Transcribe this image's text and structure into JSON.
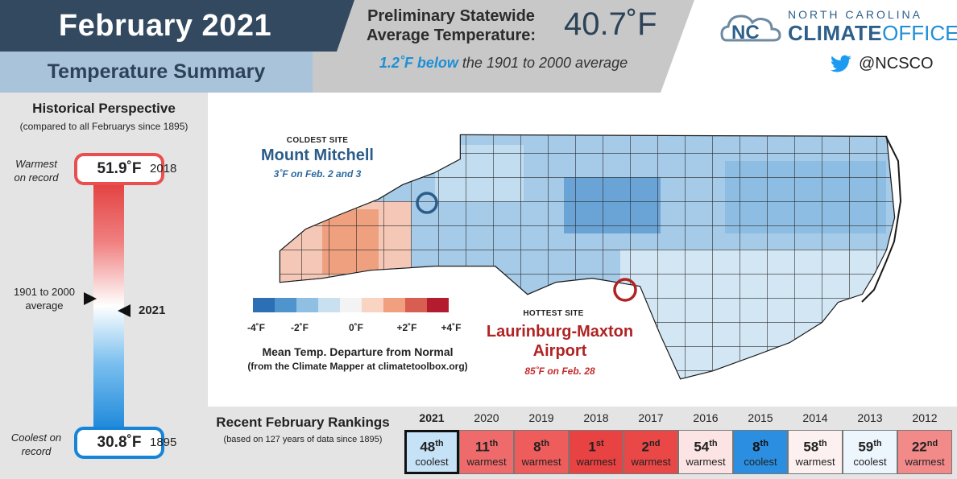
{
  "header": {
    "title": "February 2021",
    "subtitle": "Temperature Summary",
    "prelim_line1": "Preliminary Statewide",
    "prelim_line2": "Average Temperature:",
    "statewide_temp": "40.7˚F",
    "below_amount": "1.2˚F below",
    "below_rest": "the 1901 to 2000 average"
  },
  "logo": {
    "line1": "NORTH CAROLINA",
    "climate": "CLIMATE",
    "office": "OFFICE",
    "handle": "@NCSCO",
    "twitter_icon": "twitter-bird-icon",
    "accent": "#2d5f8a"
  },
  "historical": {
    "title": "Historical Perspective",
    "subtitle": "(compared to all Februarys since 1895)",
    "warmest_label_1": "Warmest",
    "warmest_label_2": "on record",
    "warmest_value": "51.9˚F",
    "warmest_year": "2018",
    "average_label_1": "1901 to 2000",
    "average_label_2": "average",
    "current_year": "2021",
    "coolest_label_1": "Coolest on",
    "coolest_label_2": "record",
    "coolest_value": "30.8˚F",
    "coolest_year": "1895",
    "warm_color": "#e94f4f",
    "cool_color": "#1684d8"
  },
  "map": {
    "coldest_tag": "COLDEST SITE",
    "coldest_name": "Mount Mitchell",
    "coldest_note": "3˚F on Feb. 2 and 3",
    "hottest_tag": "HOTTEST SITE",
    "hottest_name_1": "Laurinburg-Maxton",
    "hottest_name_2": "Airport",
    "hottest_note": "85˚F on Feb. 28",
    "legend_colors": [
      "#2c6fb4",
      "#4f94cd",
      "#8fbfe3",
      "#c9e0f1",
      "#f3f3f3",
      "#f9d4c2",
      "#f0a07e",
      "#d85e52",
      "#b31c2e"
    ],
    "legend_labels": [
      "-4˚F",
      "-2˚F",
      "0˚F",
      "+2˚F",
      "+4˚F"
    ],
    "legend_title": "Mean Temp. Departure from Normal",
    "legend_sub": "(from the Climate Mapper at climatetoolbox.org)"
  },
  "rankings": {
    "title": "Recent February Rankings",
    "subtitle": "(based on 127 years of data since 1895)",
    "items": [
      {
        "year": "2021",
        "rank": "48",
        "suffix": "th",
        "desc": "coolest",
        "color": "#c6e2f7"
      },
      {
        "year": "2020",
        "rank": "11",
        "suffix": "th",
        "desc": "warmest",
        "color": "#ef6b6b"
      },
      {
        "year": "2019",
        "rank": "8",
        "suffix": "th",
        "desc": "warmest",
        "color": "#ee5c5c"
      },
      {
        "year": "2018",
        "rank": "1",
        "suffix": "st",
        "desc": "warmest",
        "color": "#e94242"
      },
      {
        "year": "2017",
        "rank": "2",
        "suffix": "nd",
        "desc": "warmest",
        "color": "#ea4747"
      },
      {
        "year": "2016",
        "rank": "54",
        "suffix": "th",
        "desc": "warmest",
        "color": "#fde4e4"
      },
      {
        "year": "2015",
        "rank": "8",
        "suffix": "th",
        "desc": "coolest",
        "color": "#2b8ee0"
      },
      {
        "year": "2014",
        "rank": "58",
        "suffix": "th",
        "desc": "warmest",
        "color": "#fdf0f0"
      },
      {
        "year": "2013",
        "rank": "59",
        "suffix": "th",
        "desc": "coolest",
        "color": "#eef6fd"
      },
      {
        "year": "2012",
        "rank": "22",
        "suffix": "nd",
        "desc": "warmest",
        "color": "#f38a8a"
      }
    ]
  }
}
